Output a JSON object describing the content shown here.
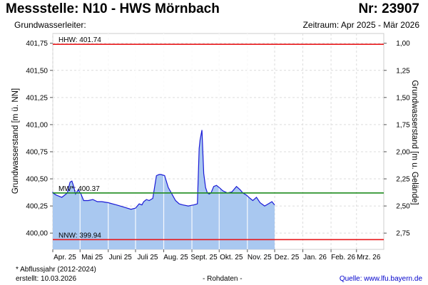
{
  "header": {
    "title": "Messstelle: N10 - HWS Mörnbach",
    "subtitle": "Grundwasserleiter:",
    "number": "Nr: 23907",
    "period": "Zeitraum: Apr 2025 - Mär 2026"
  },
  "footer": {
    "footnote": "* Abflussjahr (2012-2024)",
    "created": "erstellt:  10.03.2026",
    "rawdata": "- Rohdaten -",
    "source": "Quelle: www.lfu.bayern.de"
  },
  "chart_data": {
    "type": "area",
    "ylabel": "Grundwasserstand [m ü. NN]",
    "y2label": "Grundwasserstand [m u. Gelände]",
    "ylim": [
      399.85,
      401.84
    ],
    "yticks": [
      400.0,
      400.25,
      400.5,
      400.75,
      401.0,
      401.25,
      401.5,
      401.75
    ],
    "yticklabels": [
      "400,00",
      "400,25",
      "400,50",
      "400,75",
      "401,00",
      "401,25",
      "401,50",
      "401,75"
    ],
    "y2ticks": [
      400.0,
      400.25,
      400.5,
      400.75,
      401.0,
      401.25,
      401.5,
      401.75
    ],
    "y2ticklabels": [
      "2,75",
      "2,50",
      "2,25",
      "2,00",
      "1,75",
      "1,50",
      "1,25",
      "1,00"
    ],
    "xlim": [
      "2025-04-01",
      "2026-03-31"
    ],
    "xticks": [
      "2025-04-01",
      "2025-05-01",
      "2025-06-01",
      "2025-07-01",
      "2025-08-01",
      "2025-09-01",
      "2025-10-01",
      "2025-11-01",
      "2025-12-01",
      "2026-01-01",
      "2026-02-01",
      "2026-03-01"
    ],
    "xticklabels": [
      "Apr. 25",
      "Mai 25",
      "Juni 25",
      "Juli 25",
      "Aug. 25",
      "Sept. 25",
      "Okt. 25",
      "Nov. 25",
      "Dez. 25",
      "Jan. 26",
      "Feb. 26",
      "Mrz. 26"
    ],
    "grid": true,
    "reference_lines": [
      {
        "label": "HHW: 401.74",
        "value": 401.74,
        "color": "#e8191c"
      },
      {
        "label": "MW*: 400.37",
        "value": 400.37,
        "color": "#1e8c1e"
      },
      {
        "label": "NNW: 399.94",
        "value": 399.94,
        "color": "#e8191c"
      }
    ],
    "series": [
      {
        "color": "#1a1ad6",
        "fill": "#a9c8f0",
        "x": [
          "2025-03-27",
          "2025-04-01",
          "2025-04-05",
          "2025-04-08",
          "2025-04-11",
          "2025-04-14",
          "2025-04-17",
          "2025-04-20",
          "2025-04-22",
          "2025-04-24",
          "2025-04-26",
          "2025-04-29",
          "2025-05-02",
          "2025-05-05",
          "2025-05-10",
          "2025-05-15",
          "2025-05-20",
          "2025-05-25",
          "2025-06-01",
          "2025-06-10",
          "2025-06-18",
          "2025-06-26",
          "2025-07-01",
          "2025-07-05",
          "2025-07-08",
          "2025-07-10",
          "2025-07-13",
          "2025-07-16",
          "2025-07-20",
          "2025-07-24",
          "2025-07-27",
          "2025-07-29",
          "2025-08-02",
          "2025-08-06",
          "2025-08-10",
          "2025-08-14",
          "2025-08-18",
          "2025-08-22",
          "2025-08-28",
          "2025-09-03",
          "2025-09-07",
          "2025-09-09",
          "2025-09-10",
          "2025-09-12",
          "2025-09-14",
          "2025-09-16",
          "2025-09-18",
          "2025-09-20",
          "2025-09-22",
          "2025-09-25",
          "2025-09-28",
          "2025-10-01",
          "2025-10-05",
          "2025-10-10",
          "2025-10-15",
          "2025-10-20",
          "2025-10-24",
          "2025-10-27",
          "2025-10-31",
          "2025-11-04",
          "2025-11-07",
          "2025-11-11",
          "2025-11-15",
          "2025-11-20",
          "2025-11-24",
          "2025-11-28",
          "2025-12-01"
        ],
        "y": [
          400.38,
          400.37,
          400.35,
          400.34,
          400.33,
          400.35,
          400.37,
          400.47,
          400.48,
          400.43,
          400.36,
          400.4,
          400.36,
          400.3,
          400.3,
          400.31,
          400.29,
          400.29,
          400.28,
          400.26,
          400.24,
          400.22,
          400.23,
          400.27,
          400.26,
          400.29,
          400.31,
          400.3,
          400.32,
          400.53,
          400.54,
          400.54,
          400.53,
          400.42,
          400.36,
          400.3,
          400.27,
          400.26,
          400.25,
          400.26,
          400.27,
          400.78,
          400.86,
          400.95,
          400.55,
          400.42,
          400.37,
          400.36,
          400.37,
          400.43,
          400.44,
          400.42,
          400.39,
          400.37,
          400.38,
          400.43,
          400.4,
          400.37,
          400.35,
          400.32,
          400.3,
          400.33,
          400.28,
          400.25,
          400.27,
          400.29,
          400.26
        ]
      }
    ]
  }
}
